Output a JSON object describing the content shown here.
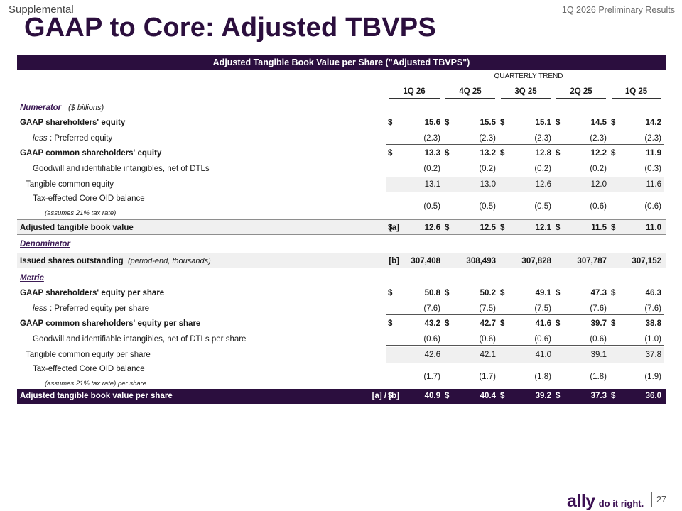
{
  "header": {
    "section": "Supplemental",
    "period": "1Q 2026 Preliminary Results",
    "title": "GAAP to Core: Adjusted TBVPS"
  },
  "banner": "Adjusted Tangible Book Value per Share (\"Adjusted TBVPS\")",
  "trend_label": "QUARTERLY TREND",
  "columns": [
    "1Q 26",
    "4Q 25",
    "3Q 25",
    "2Q 25",
    "1Q 25"
  ],
  "rows": {
    "numerator_label": "Numerator",
    "numerator_unit": "($ billions)",
    "gaap_se": {
      "label": "GAAP shareholders' equity",
      "values": [
        "15.6",
        "15.5",
        "15.1",
        "14.5",
        "14.2"
      ]
    },
    "pref": {
      "prefix": "less",
      "label": ":  Preferred equity",
      "values": [
        "(2.3)",
        "(2.3)",
        "(2.3)",
        "(2.3)",
        "(2.3)"
      ]
    },
    "gaap_cse": {
      "label": "GAAP common shareholders' equity",
      "values": [
        "13.3",
        "13.2",
        "12.8",
        "12.2",
        "11.9"
      ]
    },
    "goodwill": {
      "label": "Goodwill and identifiable intangibles, net of DTLs",
      "values": [
        "(0.2)",
        "(0.2)",
        "(0.2)",
        "(0.2)",
        "(0.3)"
      ]
    },
    "tce": {
      "label": "Tangible common equity",
      "values": [
        "13.1",
        "13.0",
        "12.6",
        "12.0",
        "11.6"
      ]
    },
    "oid": {
      "label": "Tax-effected Core OID balance",
      "note": "(assumes 21% tax rate)",
      "values": [
        "(0.5)",
        "(0.5)",
        "(0.5)",
        "(0.6)",
        "(0.6)"
      ]
    },
    "atbv": {
      "label": "Adjusted tangible book value",
      "ref": "[a]",
      "values": [
        "12.6",
        "12.5",
        "12.1",
        "11.5",
        "11.0"
      ]
    },
    "denominator_label": "Denominator",
    "shares": {
      "label": "Issued shares outstanding",
      "suffix": "(period-end, thousands)",
      "ref": "[b]",
      "values": [
        "307,408",
        "308,493",
        "307,828",
        "307,787",
        "307,152"
      ]
    },
    "metric_label": "Metric",
    "gaap_se_ps": {
      "label": "GAAP shareholders' equity per share",
      "values": [
        "50.8",
        "50.2",
        "49.1",
        "47.3",
        "46.3"
      ]
    },
    "pref_ps": {
      "prefix": "less",
      "label": ":  Preferred equity per share",
      "values": [
        "(7.6)",
        "(7.5)",
        "(7.5)",
        "(7.6)",
        "(7.6)"
      ]
    },
    "gaap_cse_ps": {
      "label": "GAAP common shareholders' equity per share",
      "values": [
        "43.2",
        "42.7",
        "41.6",
        "39.7",
        "38.8"
      ]
    },
    "goodwill_ps": {
      "label": "Goodwill and identifiable intangibles, net of DTLs per share",
      "values": [
        "(0.6)",
        "(0.6)",
        "(0.6)",
        "(0.6)",
        "(1.0)"
      ]
    },
    "tce_ps": {
      "label": "Tangible common equity per share",
      "values": [
        "42.6",
        "42.1",
        "41.0",
        "39.1",
        "37.8"
      ]
    },
    "oid_ps": {
      "label": "Tax-effected Core OID balance",
      "note": "(assumes 21% tax rate) per share",
      "values": [
        "(1.7)",
        "(1.7)",
        "(1.8)",
        "(1.8)",
        "(1.9)"
      ]
    },
    "atbv_ps": {
      "label": "Adjusted tangible book value per share",
      "ref": "[a] / [b]",
      "values": [
        "40.9",
        "40.4",
        "39.2",
        "37.3",
        "36.0"
      ]
    }
  },
  "currency": "$",
  "footer": {
    "logo_name": "ally",
    "logo_tagline": "do it right.",
    "page": "27"
  }
}
